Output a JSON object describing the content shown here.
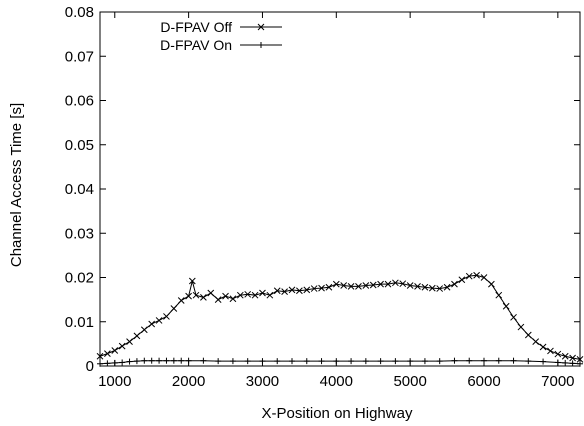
{
  "chart_data": {
    "type": "line",
    "title": "",
    "xlabel": "X-Position on Highway",
    "ylabel": "Channel Access Time [s]",
    "xlim": [
      800,
      7300
    ],
    "ylim": [
      0,
      0.08
    ],
    "x_ticks": [
      1000,
      2000,
      3000,
      4000,
      5000,
      6000,
      7000
    ],
    "y_ticks": [
      0,
      0.01,
      0.02,
      0.03,
      0.04,
      0.05,
      0.06,
      0.07,
      0.08
    ],
    "x_tick_labels": [
      "1000",
      "2000",
      "3000",
      "4000",
      "5000",
      "6000",
      "7000"
    ],
    "y_tick_labels": [
      "0",
      "0.01",
      "0.02",
      "0.03",
      "0.04",
      "0.05",
      "0.06",
      "0.07",
      "0.08"
    ],
    "grid": false,
    "legend_position": "top-left",
    "series": [
      {
        "name": "D-FPAV Off",
        "marker": "x",
        "color": "#000000",
        "points": [
          [
            800,
            0.0022
          ],
          [
            900,
            0.0028
          ],
          [
            1000,
            0.0035
          ],
          [
            1100,
            0.0045
          ],
          [
            1200,
            0.0055
          ],
          [
            1300,
            0.0068
          ],
          [
            1400,
            0.0082
          ],
          [
            1500,
            0.0095
          ],
          [
            1600,
            0.0103
          ],
          [
            1700,
            0.0112
          ],
          [
            1800,
            0.013
          ],
          [
            1900,
            0.0148
          ],
          [
            2000,
            0.0158
          ],
          [
            2050,
            0.0192
          ],
          [
            2100,
            0.016
          ],
          [
            2200,
            0.0155
          ],
          [
            2300,
            0.0165
          ],
          [
            2400,
            0.015
          ],
          [
            2500,
            0.0158
          ],
          [
            2600,
            0.0152
          ],
          [
            2700,
            0.016
          ],
          [
            2800,
            0.0162
          ],
          [
            2900,
            0.016
          ],
          [
            3000,
            0.0165
          ],
          [
            3100,
            0.016
          ],
          [
            3200,
            0.017
          ],
          [
            3300,
            0.0168
          ],
          [
            3400,
            0.0172
          ],
          [
            3500,
            0.017
          ],
          [
            3600,
            0.0172
          ],
          [
            3700,
            0.0175
          ],
          [
            3800,
            0.0176
          ],
          [
            3900,
            0.0178
          ],
          [
            4000,
            0.0185
          ],
          [
            4100,
            0.0182
          ],
          [
            4200,
            0.018
          ],
          [
            4300,
            0.018
          ],
          [
            4400,
            0.0182
          ],
          [
            4500,
            0.0183
          ],
          [
            4600,
            0.0185
          ],
          [
            4700,
            0.0185
          ],
          [
            4800,
            0.0188
          ],
          [
            4900,
            0.0186
          ],
          [
            5000,
            0.0182
          ],
          [
            5100,
            0.018
          ],
          [
            5200,
            0.0178
          ],
          [
            5300,
            0.0176
          ],
          [
            5400,
            0.0175
          ],
          [
            5500,
            0.0178
          ],
          [
            5600,
            0.0185
          ],
          [
            5700,
            0.0195
          ],
          [
            5800,
            0.0203
          ],
          [
            5900,
            0.0205
          ],
          [
            6000,
            0.02
          ],
          [
            6100,
            0.0185
          ],
          [
            6200,
            0.016
          ],
          [
            6300,
            0.0135
          ],
          [
            6400,
            0.011
          ],
          [
            6500,
            0.0088
          ],
          [
            6600,
            0.007
          ],
          [
            6700,
            0.0055
          ],
          [
            6800,
            0.0043
          ],
          [
            6900,
            0.0034
          ],
          [
            7000,
            0.0027
          ],
          [
            7100,
            0.0022
          ],
          [
            7200,
            0.0018
          ],
          [
            7300,
            0.0015
          ]
        ]
      },
      {
        "name": "D-FPAV On",
        "marker": "+",
        "color": "#000000",
        "points": [
          [
            800,
            0.0005
          ],
          [
            900,
            0.0006
          ],
          [
            1000,
            0.0007
          ],
          [
            1100,
            0.0008
          ],
          [
            1200,
            0.001
          ],
          [
            1300,
            0.0011
          ],
          [
            1400,
            0.0012
          ],
          [
            1500,
            0.0012
          ],
          [
            1600,
            0.0012
          ],
          [
            1700,
            0.0012
          ],
          [
            1800,
            0.0012
          ],
          [
            1900,
            0.0012
          ],
          [
            2000,
            0.0012
          ],
          [
            2200,
            0.0012
          ],
          [
            2400,
            0.0011
          ],
          [
            2600,
            0.0011
          ],
          [
            2800,
            0.0011
          ],
          [
            3000,
            0.0011
          ],
          [
            3200,
            0.0011
          ],
          [
            3400,
            0.0011
          ],
          [
            3600,
            0.0011
          ],
          [
            3800,
            0.0011
          ],
          [
            4000,
            0.0011
          ],
          [
            4200,
            0.0011
          ],
          [
            4400,
            0.0011
          ],
          [
            4600,
            0.0011
          ],
          [
            4800,
            0.0011
          ],
          [
            5000,
            0.0011
          ],
          [
            5200,
            0.0011
          ],
          [
            5400,
            0.0011
          ],
          [
            5600,
            0.0012
          ],
          [
            5800,
            0.0012
          ],
          [
            6000,
            0.0012
          ],
          [
            6200,
            0.0012
          ],
          [
            6400,
            0.0012
          ],
          [
            6600,
            0.0011
          ],
          [
            6800,
            0.001
          ],
          [
            7000,
            0.0008
          ],
          [
            7100,
            0.0007
          ],
          [
            7200,
            0.0006
          ],
          [
            7300,
            0.0005
          ]
        ]
      }
    ]
  }
}
